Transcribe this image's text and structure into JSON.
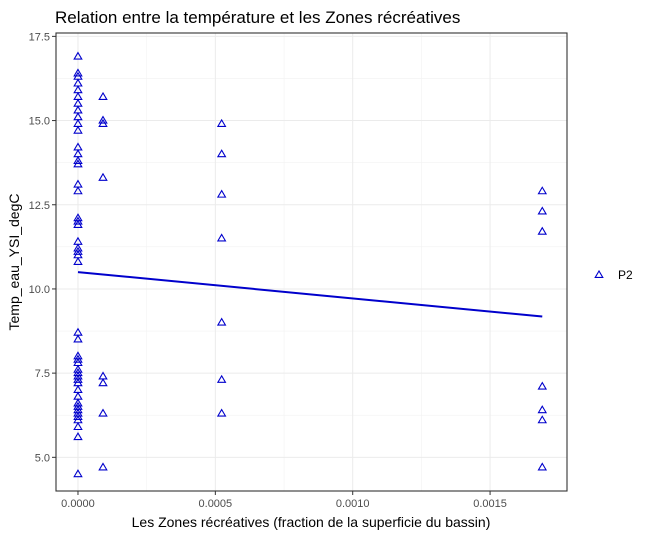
{
  "chart_data": {
    "type": "scatter",
    "title": "Relation entre la température et les Zones récréatives",
    "xlabel": "Les Zones récréatives (fraction de la superficie du bassin)",
    "ylabel": "Temp_eau_YSI_degC",
    "xlim": [
      -8e-05,
      0.00178
    ],
    "ylim": [
      4.0,
      17.6
    ],
    "xticks": [
      0.0,
      0.0005,
      0.001,
      0.0015
    ],
    "xtick_labels": [
      "0.0000",
      "0.0005",
      "0.0010",
      "0.0015"
    ],
    "yticks": [
      5.0,
      7.5,
      10.0,
      12.5,
      15.0,
      17.5
    ],
    "ytick_labels": [
      "5.0",
      "7.5",
      "10.0",
      "12.5",
      "15.0",
      "17.5"
    ],
    "grid": true,
    "legend_position": "right",
    "series": [
      {
        "name": "P2",
        "color": "#0000cc",
        "marker": "triangle-open",
        "points": [
          [
            0.0,
            16.9
          ],
          [
            0.0,
            16.4
          ],
          [
            0.0,
            16.3
          ],
          [
            0.0,
            16.1
          ],
          [
            0.0,
            15.9
          ],
          [
            0.0,
            15.7
          ],
          [
            0.0,
            15.5
          ],
          [
            0.0,
            15.3
          ],
          [
            0.0,
            15.1
          ],
          [
            0.0,
            14.9
          ],
          [
            0.0,
            14.7
          ],
          [
            0.0,
            14.2
          ],
          [
            0.0,
            14.0
          ],
          [
            0.0,
            13.8
          ],
          [
            0.0,
            13.7
          ],
          [
            0.0,
            13.1
          ],
          [
            0.0,
            12.9
          ],
          [
            0.0,
            12.1
          ],
          [
            0.0,
            12.0
          ],
          [
            0.0,
            11.9
          ],
          [
            0.0,
            11.4
          ],
          [
            0.0,
            11.2
          ],
          [
            0.0,
            11.1
          ],
          [
            0.0,
            11.0
          ],
          [
            0.0,
            10.8
          ],
          [
            0.0,
            8.7
          ],
          [
            0.0,
            8.5
          ],
          [
            0.0,
            8.0
          ],
          [
            0.0,
            7.9
          ],
          [
            0.0,
            7.8
          ],
          [
            0.0,
            7.6
          ],
          [
            0.0,
            7.5
          ],
          [
            0.0,
            7.4
          ],
          [
            0.0,
            7.3
          ],
          [
            0.0,
            7.2
          ],
          [
            0.0,
            7.0
          ],
          [
            0.0,
            6.8
          ],
          [
            0.0,
            6.6
          ],
          [
            0.0,
            6.5
          ],
          [
            0.0,
            6.4
          ],
          [
            0.0,
            6.3
          ],
          [
            0.0,
            6.2
          ],
          [
            0.0,
            6.1
          ],
          [
            0.0,
            5.9
          ],
          [
            0.0,
            5.6
          ],
          [
            0.0,
            4.5
          ],
          [
            9.11e-05,
            15.7
          ],
          [
            9.11e-05,
            15.0
          ],
          [
            9.11e-05,
            14.9
          ],
          [
            9.11e-05,
            13.3
          ],
          [
            9.11e-05,
            7.4
          ],
          [
            9.11e-05,
            7.2
          ],
          [
            9.11e-05,
            6.3
          ],
          [
            9.11e-05,
            4.7
          ],
          [
            0.000523,
            14.9
          ],
          [
            0.000523,
            14.0
          ],
          [
            0.000523,
            12.8
          ],
          [
            0.000523,
            11.5
          ],
          [
            0.000523,
            9.0
          ],
          [
            0.000523,
            7.3
          ],
          [
            0.000523,
            6.3
          ],
          [
            0.00169,
            12.9
          ],
          [
            0.00169,
            12.3
          ],
          [
            0.00169,
            11.7
          ],
          [
            0.00169,
            7.1
          ],
          [
            0.00169,
            6.4
          ],
          [
            0.00169,
            6.1
          ],
          [
            0.00169,
            4.7
          ]
        ]
      }
    ],
    "trend_line": {
      "color": "#0000cc",
      "points": [
        [
          0.0,
          10.5
        ],
        [
          0.00169,
          9.18
        ]
      ]
    }
  }
}
